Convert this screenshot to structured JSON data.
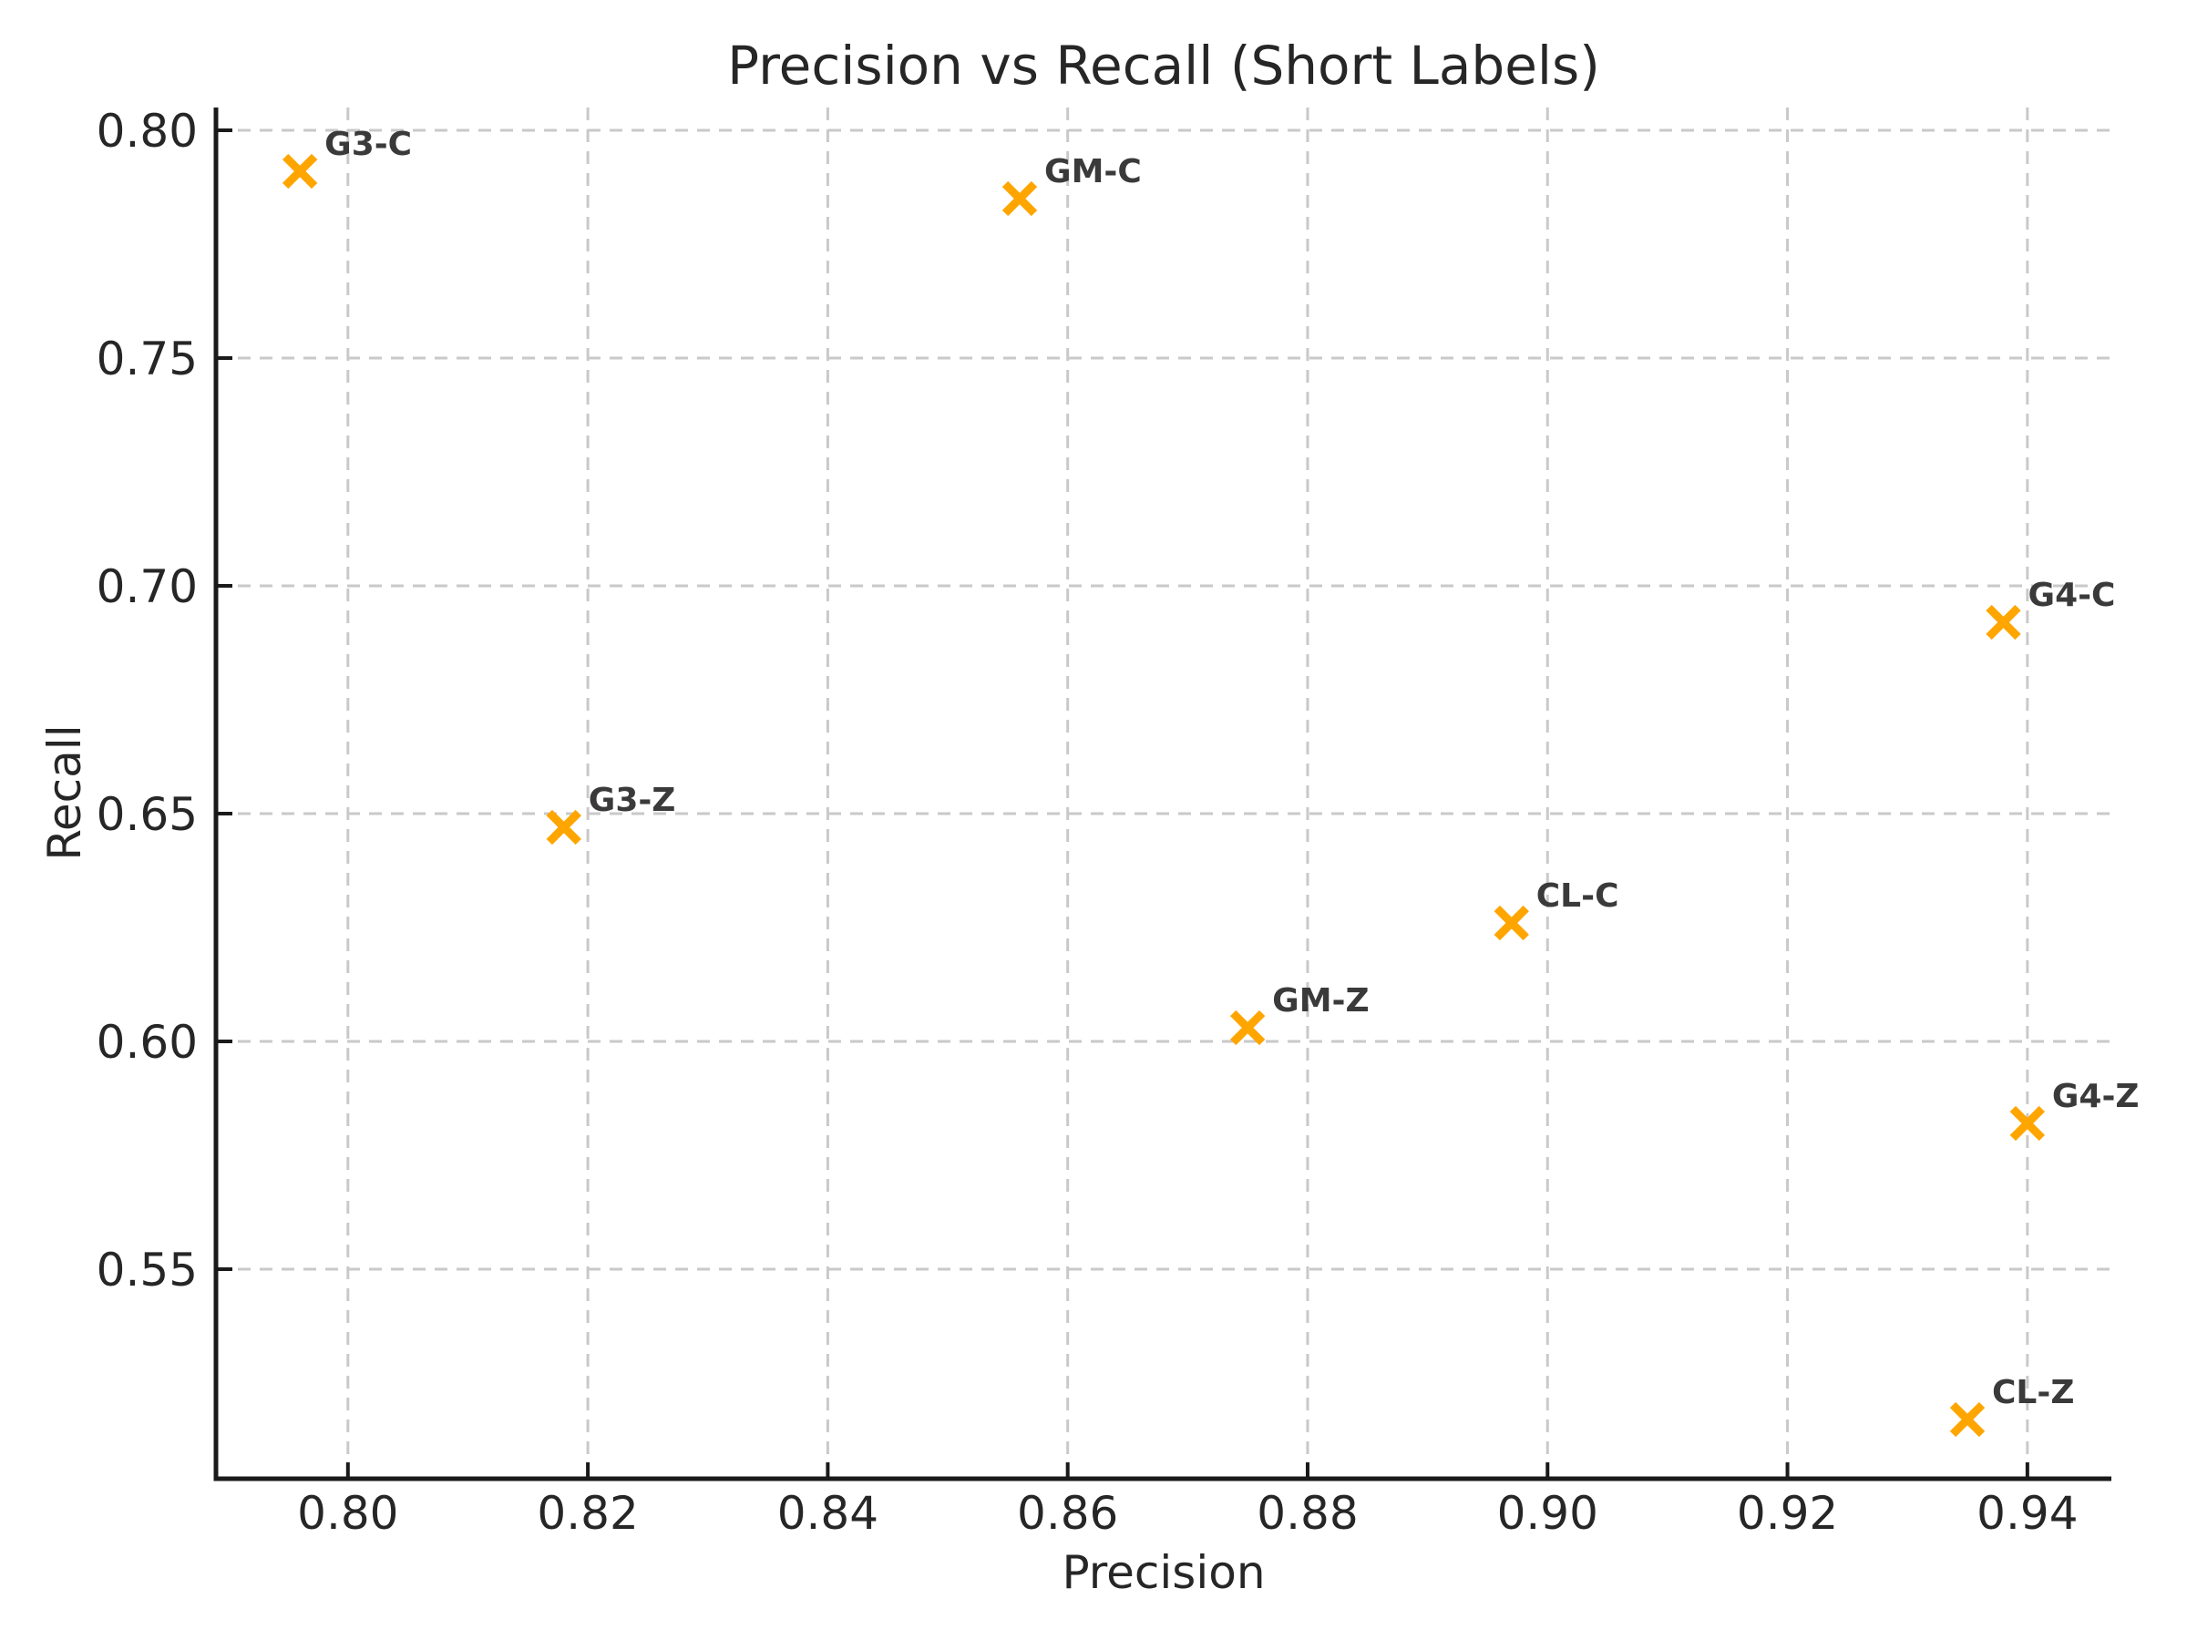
{
  "chart_data": {
    "type": "scatter",
    "title": "Precision vs Recall (Short Labels)",
    "xlabel": "Precision",
    "ylabel": "Recall",
    "xlim": [
      0.789,
      0.947
    ],
    "ylim": [
      0.504,
      0.805
    ],
    "xticks": [
      0.8,
      0.82,
      0.84,
      0.86,
      0.88,
      0.9,
      0.92,
      0.94
    ],
    "yticks": [
      0.55,
      0.6,
      0.65,
      0.7,
      0.75,
      0.8
    ],
    "tick_decimals": 2,
    "grid": true,
    "grid_style": "dashed",
    "legend": "none",
    "marker": "x",
    "marker_color": "#FFA500",
    "point_label_color": "#3a3a3a",
    "points": [
      {
        "label": "G3-C",
        "x": 0.796,
        "y": 0.791
      },
      {
        "label": "GM-C",
        "x": 0.856,
        "y": 0.785
      },
      {
        "label": "G4-C",
        "x": 0.938,
        "y": 0.692
      },
      {
        "label": "G3-Z",
        "x": 0.818,
        "y": 0.647
      },
      {
        "label": "CL-C",
        "x": 0.897,
        "y": 0.626
      },
      {
        "label": "GM-Z",
        "x": 0.875,
        "y": 0.603
      },
      {
        "label": "G4-Z",
        "x": 0.94,
        "y": 0.582
      },
      {
        "label": "CL-Z",
        "x": 0.935,
        "y": 0.517
      }
    ]
  }
}
